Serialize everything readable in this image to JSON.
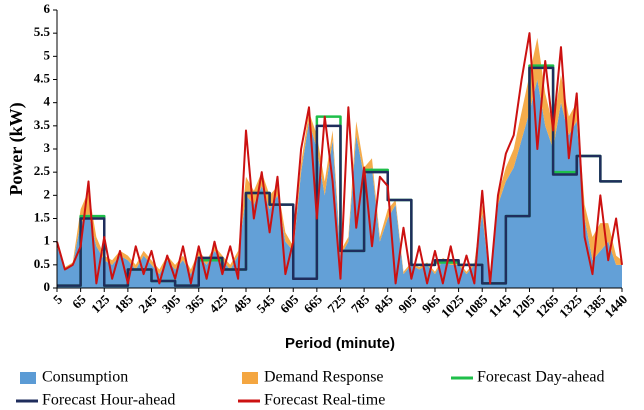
{
  "chart_data": {
    "type": "line",
    "y_label": "Power (kW)",
    "x_label": "Period (minute)",
    "x": [
      5,
      25,
      45,
      65,
      85,
      105,
      125,
      145,
      165,
      185,
      205,
      225,
      245,
      265,
      285,
      305,
      325,
      345,
      365,
      385,
      405,
      425,
      445,
      465,
      485,
      505,
      525,
      545,
      565,
      585,
      605,
      625,
      645,
      665,
      685,
      705,
      725,
      745,
      765,
      785,
      805,
      825,
      845,
      865,
      885,
      905,
      925,
      945,
      965,
      985,
      1005,
      1025,
      1045,
      1065,
      1085,
      1105,
      1125,
      1145,
      1165,
      1185,
      1205,
      1225,
      1245,
      1265,
      1285,
      1305,
      1325,
      1345,
      1365,
      1385,
      1405,
      1425,
      1440
    ],
    "xlim": [
      5,
      1440
    ],
    "xticks": [
      5,
      65,
      125,
      185,
      245,
      305,
      365,
      425,
      485,
      545,
      605,
      665,
      725,
      785,
      845,
      905,
      965,
      1025,
      1085,
      1145,
      1205,
      1265,
      1325,
      1385,
      1440
    ],
    "ylim": [
      0,
      6
    ],
    "yticks": [
      0,
      0.5,
      1,
      1.5,
      2,
      2.5,
      3,
      3.5,
      4,
      4.5,
      5,
      5.5,
      6
    ],
    "grid": false,
    "legend": "bottom",
    "series": [
      {
        "name": "Consumption",
        "kind": "area",
        "color": "#5b9bd5",
        "values": [
          0.9,
          0.4,
          0.5,
          1.4,
          1.6,
          0.9,
          0.6,
          0.5,
          0.7,
          0.6,
          0.4,
          0.7,
          0.5,
          0.3,
          0.6,
          0.4,
          0.6,
          0.3,
          0.7,
          0.5,
          0.8,
          0.6,
          0.4,
          0.7,
          2.0,
          1.8,
          2.2,
          1.7,
          2.0,
          1.0,
          0.8,
          2.5,
          3.6,
          3.0,
          2.0,
          3.2,
          0.7,
          1.0,
          3.3,
          2.4,
          2.6,
          1.0,
          1.5,
          1.8,
          0.3,
          0.5,
          0.4,
          0.5,
          0.3,
          0.6,
          0.5,
          0.5,
          0.3,
          0.5,
          1.6,
          0.1,
          1.8,
          2.3,
          2.6,
          3.2,
          3.8,
          4.5,
          3.5,
          3.0,
          4.0,
          3.3,
          3.6,
          1.5,
          0.6,
          0.8,
          1.0,
          0.5,
          0.5
        ]
      },
      {
        "name": "Demand Response",
        "kind": "area",
        "stacked": true,
        "color": "#f4a640",
        "values": [
          0.05,
          0.05,
          0.05,
          0.3,
          0.5,
          0.2,
          0.1,
          0.1,
          0.1,
          0.1,
          0.1,
          0.1,
          0.1,
          0.1,
          0.1,
          0.1,
          0.1,
          0.1,
          0.1,
          0.1,
          0.1,
          0.1,
          0.1,
          0.1,
          0.4,
          0.3,
          0.3,
          0.3,
          0.2,
          0.2,
          0.1,
          0.2,
          0.2,
          0.3,
          0.3,
          0.2,
          0.1,
          0.1,
          0.3,
          0.2,
          0.2,
          0.1,
          0.2,
          0.1,
          0.05,
          0.05,
          0.05,
          0.05,
          0.05,
          0.05,
          0.05,
          0.05,
          0.05,
          0.05,
          0.2,
          0.05,
          0.2,
          0.3,
          0.4,
          0.6,
          0.8,
          0.9,
          0.7,
          0.5,
          0.6,
          0.4,
          0.4,
          0.3,
          0.5,
          0.6,
          0.4,
          0.2,
          0.1
        ]
      },
      {
        "name": "Forecast Day-ahead",
        "kind": "line",
        "drawstyle": "steps-post",
        "color": "#1fbf4a",
        "values": [
          0.05,
          0.05,
          0.05,
          1.55,
          1.55,
          1.55,
          0.05,
          0.05,
          0.05,
          0.4,
          0.4,
          0.4,
          0.15,
          0.15,
          0.15,
          0.05,
          0.05,
          0.05,
          0.6,
          0.6,
          0.6,
          0.4,
          0.4,
          0.4,
          2.05,
          2.05,
          2.05,
          1.8,
          1.8,
          1.8,
          0.2,
          0.2,
          0.2,
          3.7,
          3.7,
          3.7,
          0.8,
          0.8,
          0.8,
          2.55,
          2.55,
          2.55,
          1.9,
          1.9,
          1.9,
          0.5,
          0.5,
          0.5,
          0.55,
          0.55,
          0.55,
          0.5,
          0.5,
          0.5,
          0.1,
          0.1,
          0.1,
          1.55,
          1.55,
          1.55,
          4.8,
          4.8,
          4.8,
          2.5,
          2.5,
          2.5,
          2.85,
          2.85,
          2.85,
          2.3,
          2.3,
          2.3,
          2.3
        ]
      },
      {
        "name": "Forecast Hour-ahead",
        "kind": "line",
        "drawstyle": "steps-post",
        "color": "#1f2d5c",
        "values": [
          0.05,
          0.05,
          0.05,
          1.5,
          1.5,
          1.5,
          0.05,
          0.05,
          0.05,
          0.4,
          0.4,
          0.4,
          0.15,
          0.15,
          0.15,
          0.05,
          0.05,
          0.05,
          0.65,
          0.65,
          0.65,
          0.4,
          0.4,
          0.4,
          2.05,
          2.05,
          2.05,
          1.8,
          1.8,
          1.8,
          0.2,
          0.2,
          0.2,
          3.5,
          3.5,
          3.5,
          0.8,
          0.8,
          0.8,
          2.5,
          2.5,
          2.5,
          1.9,
          1.9,
          1.9,
          0.5,
          0.5,
          0.5,
          0.6,
          0.6,
          0.6,
          0.5,
          0.5,
          0.5,
          0.1,
          0.1,
          0.1,
          1.55,
          1.55,
          1.55,
          4.75,
          4.75,
          4.75,
          2.45,
          2.45,
          2.45,
          2.85,
          2.85,
          2.85,
          2.3,
          2.3,
          2.3,
          2.3
        ]
      },
      {
        "name": "Forecast Real-time",
        "kind": "line",
        "color": "#cc1111",
        "values": [
          1.0,
          0.4,
          0.5,
          0.9,
          2.3,
          0.1,
          1.1,
          0.2,
          0.8,
          0.1,
          0.9,
          0.3,
          0.8,
          0.1,
          0.7,
          0.2,
          0.9,
          0.1,
          0.9,
          0.2,
          1.0,
          0.3,
          0.9,
          0.2,
          3.4,
          1.5,
          2.5,
          1.2,
          2.4,
          0.3,
          1.0,
          3.0,
          3.9,
          1.5,
          3.7,
          2.3,
          0.2,
          3.9,
          1.3,
          2.6,
          0.9,
          2.4,
          2.2,
          0.1,
          1.3,
          0.2,
          0.9,
          0.1,
          0.8,
          0.1,
          0.9,
          0.1,
          0.7,
          0.1,
          2.1,
          0.1,
          2.0,
          2.9,
          3.3,
          4.5,
          5.5,
          3.0,
          4.9,
          3.4,
          5.2,
          2.8,
          4.2,
          1.1,
          0.3,
          2.0,
          0.6,
          1.5,
          0.5
        ]
      }
    ]
  }
}
